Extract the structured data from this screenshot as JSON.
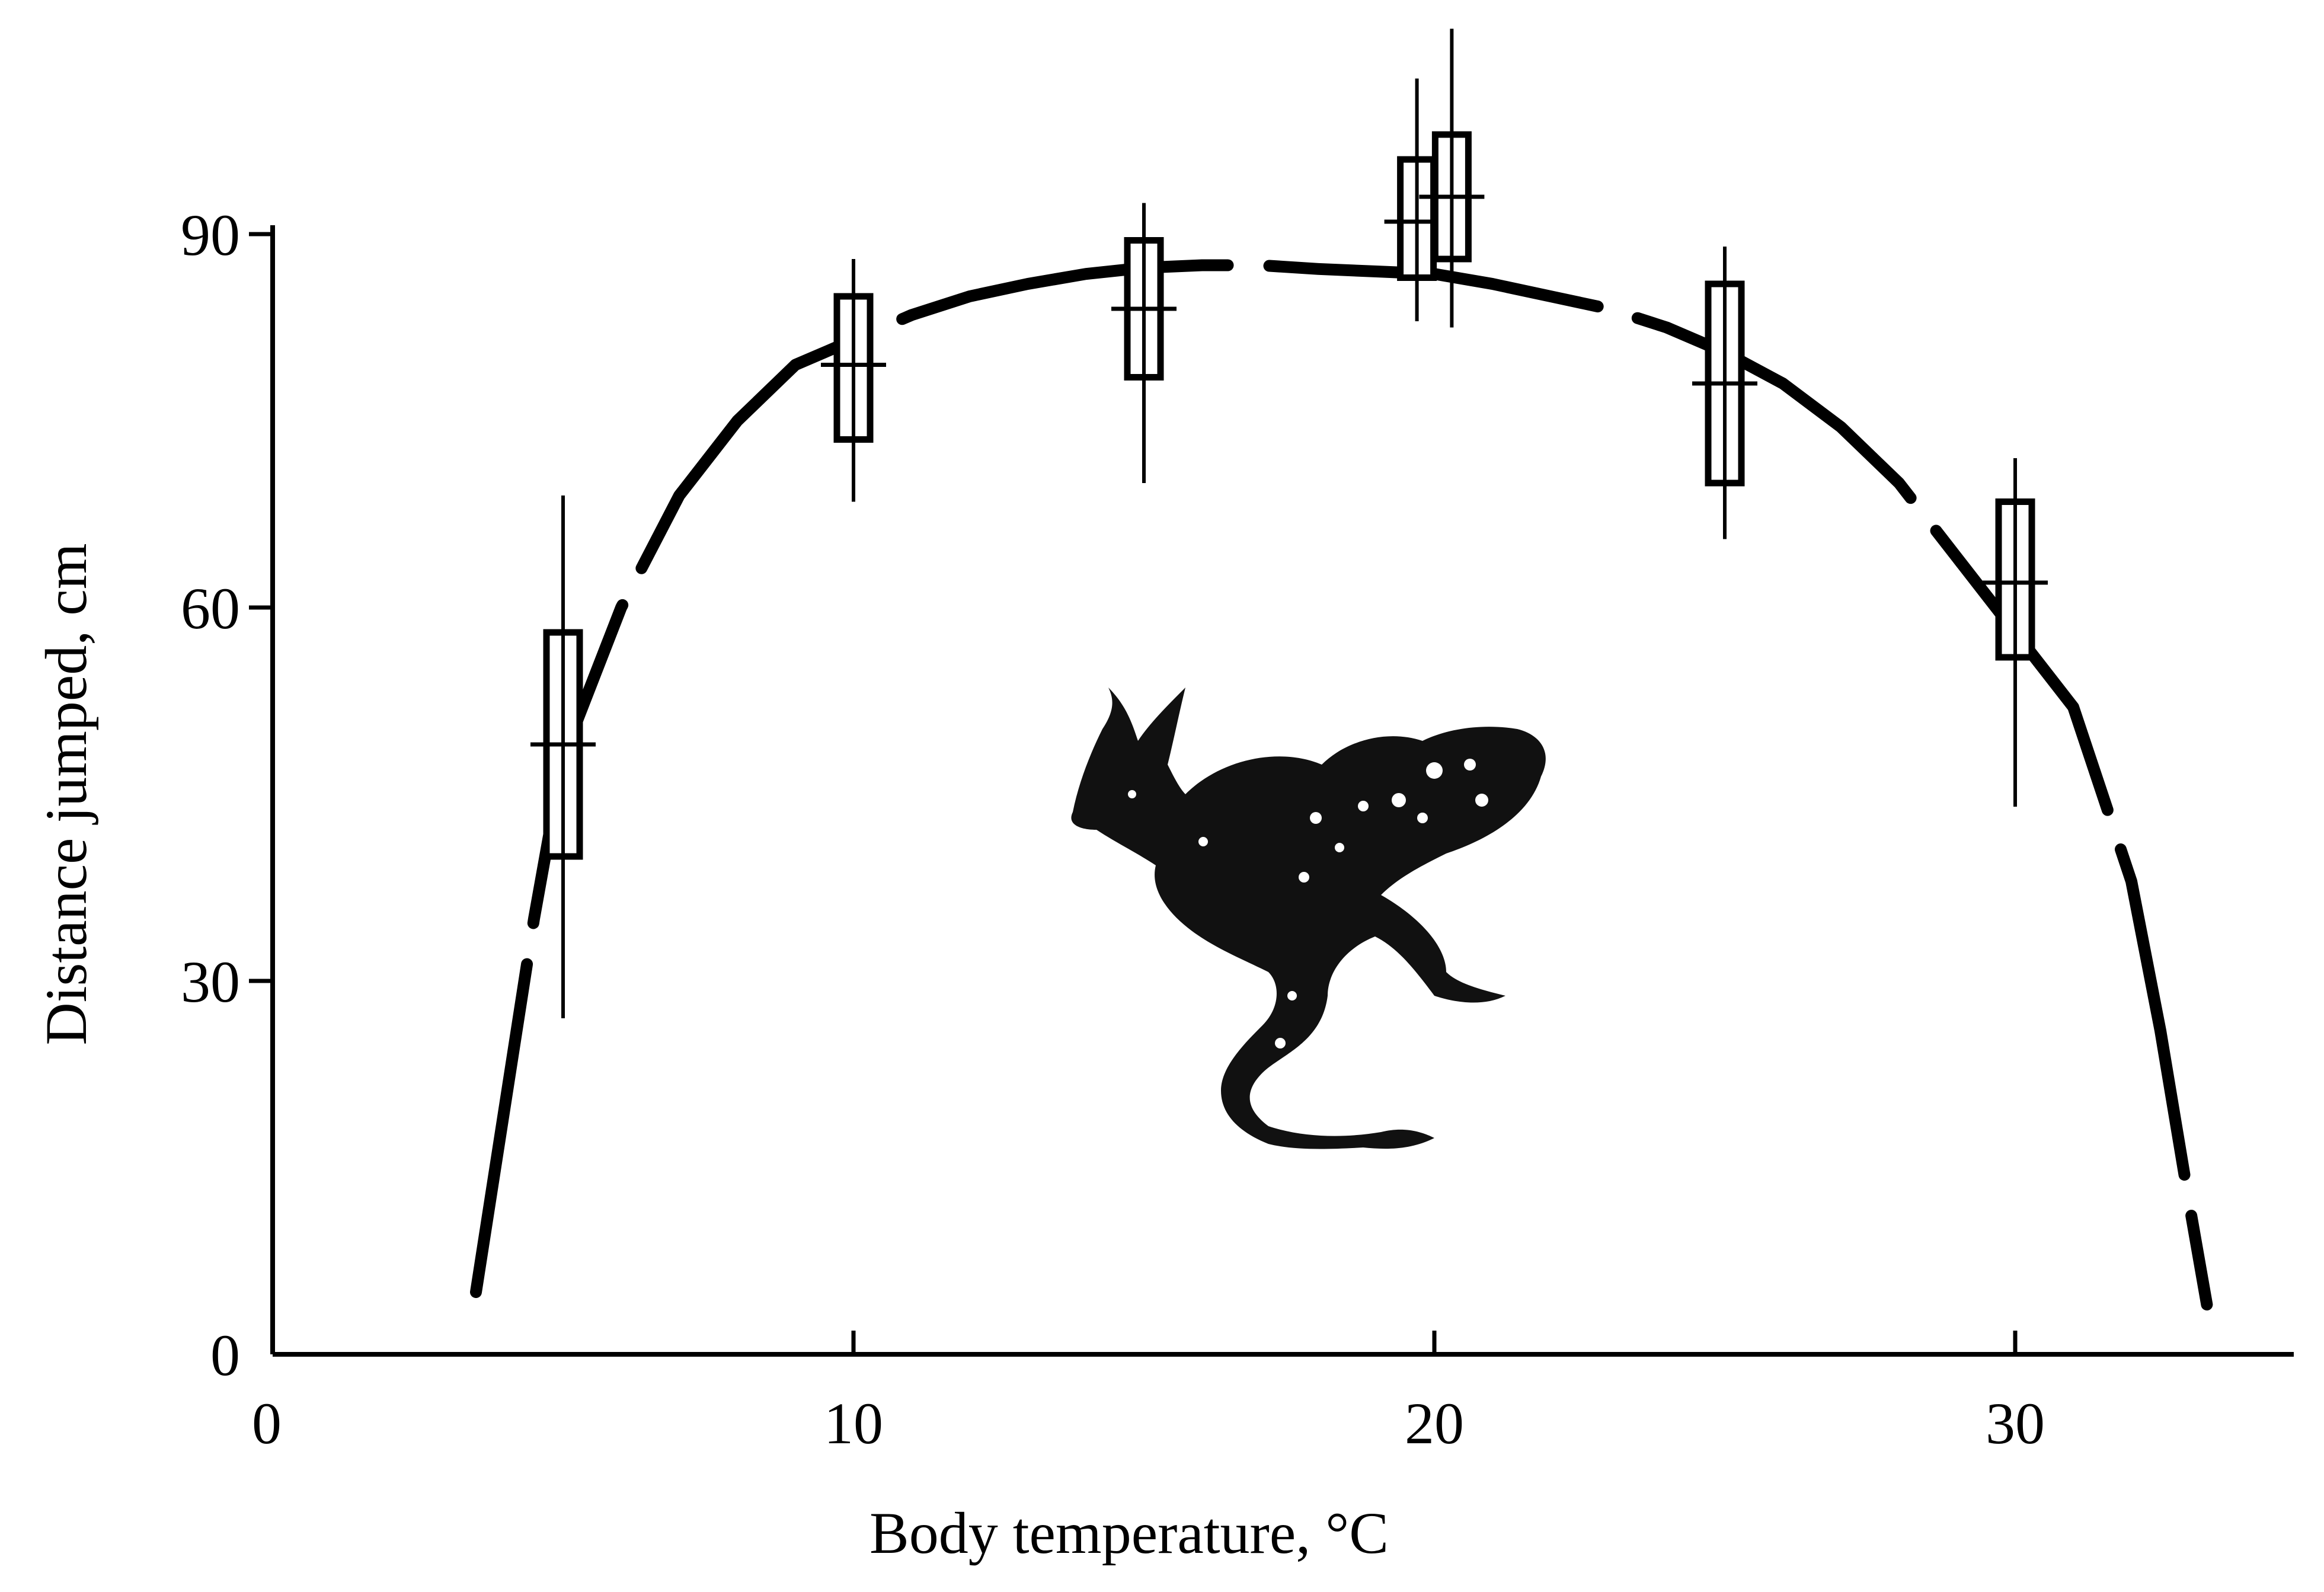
{
  "chart_data": {
    "type": "boxplot",
    "xlabel": "Body temperature, °C",
    "ylabel": "Distance jumped, cm",
    "xlim": [
      0,
      35
    ],
    "ylim": [
      0,
      90
    ],
    "x_ticks": [
      "0",
      "10",
      "20",
      "30"
    ],
    "y_ticks": [
      "0",
      "30",
      "60",
      "90"
    ],
    "grid": false,
    "legend": "none",
    "colors": {
      "ink": "#000000",
      "background": "#ffffff"
    },
    "fitted_curve": {
      "style": "dashed",
      "x": [
        3.5,
        4.0,
        4.5,
        5.0,
        6.0,
        7.0,
        8.0,
        9.0,
        10.0,
        11.0,
        12.0,
        13.0,
        14.0,
        15.0,
        16.0,
        17.0,
        18.0,
        19.0,
        20.0,
        21.0,
        22.0,
        23.0,
        24.0,
        25.0,
        26.0,
        27.0,
        28.0,
        29.0,
        30.0,
        31.0,
        32.0,
        32.5,
        33.0,
        33.3
      ],
      "y": [
        5,
        20,
        35,
        48,
        60,
        69,
        75,
        79.5,
        81.5,
        83.5,
        85,
        86,
        86.8,
        87.3,
        87.5,
        87.5,
        87.2,
        87,
        86.8,
        86,
        85,
        84,
        82.5,
        80.5,
        78,
        74.5,
        70,
        64,
        58,
        52,
        38,
        26,
        12,
        4
      ]
    },
    "groups": [
      {
        "x": 5,
        "median": 49,
        "q1": 40,
        "q3": 58,
        "min": 27,
        "max": 69
      },
      {
        "x": 10,
        "median": 79.5,
        "q1": 73.5,
        "q3": 85,
        "min": 68.5,
        "max": 88
      },
      {
        "x": 15,
        "median": 84,
        "q1": 78.5,
        "q3": 89.5,
        "min": 70,
        "max": 92.5
      },
      {
        "x": 19.7,
        "median": 91,
        "q1": 86.5,
        "q3": 96,
        "min": 83,
        "max": 102.5
      },
      {
        "x": 20.3,
        "median": 93,
        "q1": 88,
        "q3": 98,
        "min": 82.5,
        "max": 106.5
      },
      {
        "x": 25,
        "median": 78,
        "q1": 70,
        "q3": 86,
        "min": 65.5,
        "max": 89
      },
      {
        "x": 30,
        "median": 62,
        "q1": 56,
        "q3": 68.5,
        "min": 44,
        "max": 72
      }
    ],
    "illustration": "frog-illustration"
  }
}
